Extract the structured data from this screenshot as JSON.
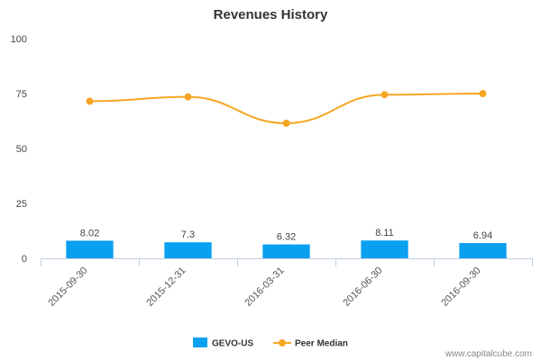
{
  "chart_data": {
    "type": "bar",
    "title": "Revenues History",
    "categories": [
      "2015-09-30",
      "2015-12-31",
      "2016-03-31",
      "2016-06-30",
      "2016-09-30"
    ],
    "series": [
      {
        "name": "GEVO-US",
        "type": "bar",
        "color": "#0aa0f0",
        "values": [
          8.02,
          7.3,
          6.32,
          8.11,
          6.94
        ],
        "labels": [
          "8.02",
          "7.3",
          "6.32",
          "8.11",
          "6.94"
        ]
      },
      {
        "name": "Peer Median",
        "type": "line",
        "color": "#f5a623",
        "values": [
          71.5,
          73.5,
          61.5,
          74.5,
          75
        ]
      }
    ],
    "ylim": [
      0,
      100
    ],
    "yticks": [
      0,
      25,
      50,
      75,
      100
    ],
    "grid": false,
    "legend_position": "bottom-center"
  },
  "credit": "www.capitalcube.com"
}
